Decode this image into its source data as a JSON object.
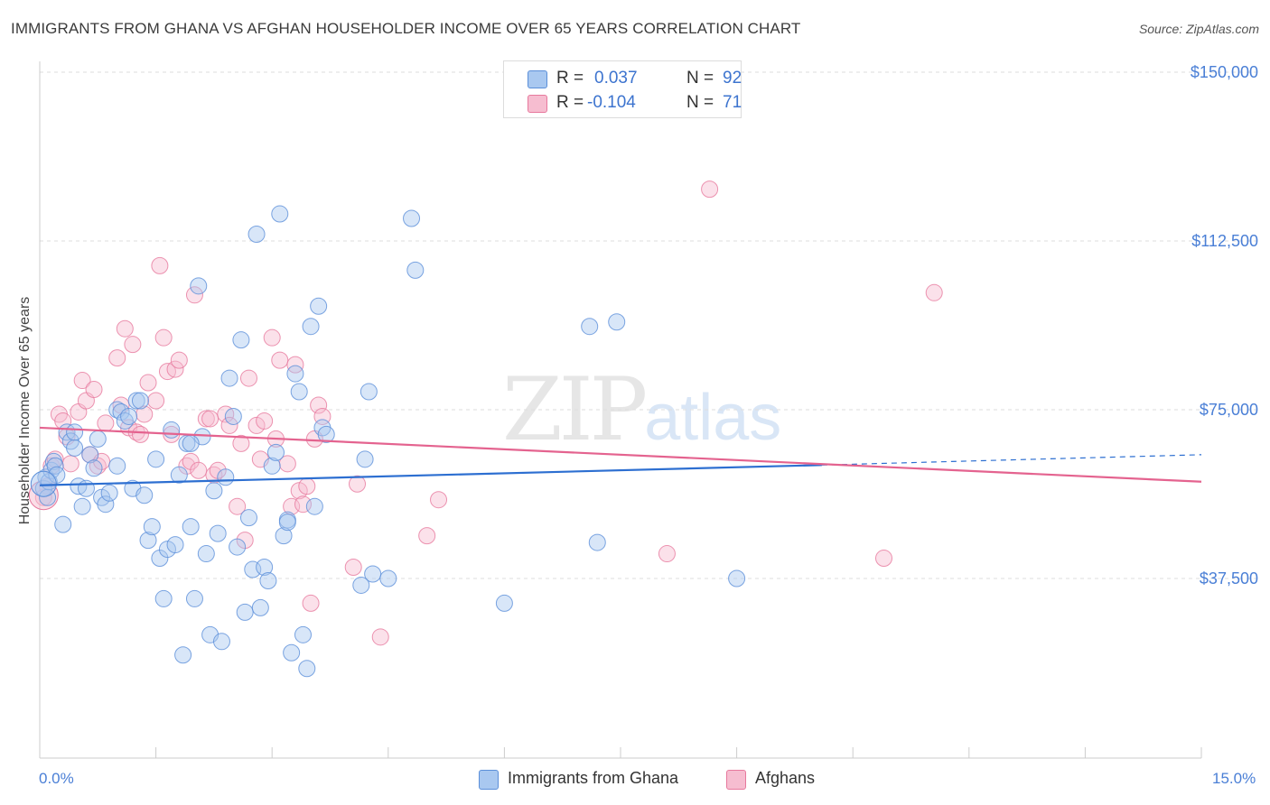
{
  "title": "IMMIGRANTS FROM GHANA VS AFGHAN HOUSEHOLDER INCOME OVER 65 YEARS CORRELATION CHART",
  "source": "Source: ZipAtlas.com",
  "watermark": {
    "zip": "ZIP",
    "atlas": "atlas"
  },
  "legend": {
    "rows": [
      {
        "r_label": "R =",
        "r_value": "0.037",
        "n_label": "N =",
        "n_value": "92",
        "color": "#a9c8f0"
      },
      {
        "r_label": "R =",
        "r_value": "-0.104",
        "n_label": "N =",
        "n_value": "71",
        "color": "#f6bdd0"
      }
    ]
  },
  "bottom_legend": [
    {
      "label": "Immigrants from Ghana",
      "color": "#a9c8f0"
    },
    {
      "label": "Afghans",
      "color": "#f6bdd0"
    }
  ],
  "colors": {
    "blue_fill": "#a9c8f0",
    "blue_stroke": "#5b8fd9",
    "blue_line": "#2d6fd1",
    "pink_fill": "#f6bdd0",
    "pink_stroke": "#e7799d",
    "pink_line": "#e4638f",
    "grid": "#dedede",
    "axis": "#cccccc",
    "tick_text": "#4a7fd6"
  },
  "chart_data": {
    "type": "scatter",
    "title": "IMMIGRANTS FROM GHANA VS AFGHAN HOUSEHOLDER INCOME OVER 65 YEARS CORRELATION CHART",
    "xlabel": "",
    "ylabel": "Householder Income Over 65 years",
    "xlim": [
      0,
      15
    ],
    "ylim": [
      0,
      154000
    ],
    "x_ticks": [
      "0.0%",
      "15.0%"
    ],
    "y_ticks": [
      {
        "value": 37500,
        "label": "$37,500"
      },
      {
        "value": 75000,
        "label": "$75,000"
      },
      {
        "value": 112500,
        "label": "$112,500"
      },
      {
        "value": 150000,
        "label": "$150,000"
      }
    ],
    "grid": true,
    "legend_position": "top-center",
    "series": [
      {
        "name": "Immigrants from Ghana",
        "r": 0.037,
        "n": 92,
        "trend": {
          "x0": 0,
          "y0": 58200,
          "x1": 10.1,
          "y1": 62700,
          "dash_x1": 15.0,
          "dash_y1": 65000
        },
        "points": [
          [
            0.05,
            57500
          ],
          [
            0.08,
            60000
          ],
          [
            0.1,
            55500
          ],
          [
            0.12,
            59000
          ],
          [
            0.15,
            61500
          ],
          [
            0.18,
            63500
          ],
          [
            0.2,
            62500
          ],
          [
            0.22,
            60500
          ],
          [
            0.3,
            49500
          ],
          [
            0.35,
            70000
          ],
          [
            0.4,
            68000
          ],
          [
            0.45,
            66500
          ],
          [
            0.5,
            58000
          ],
          [
            0.55,
            53500
          ],
          [
            0.6,
            57500
          ],
          [
            0.65,
            65000
          ],
          [
            0.7,
            62000
          ],
          [
            0.75,
            68500
          ],
          [
            0.8,
            55500
          ],
          [
            0.85,
            54000
          ],
          [
            0.9,
            56500
          ],
          [
            1.0,
            75000
          ],
          [
            1.05,
            74500
          ],
          [
            1.1,
            72500
          ],
          [
            1.15,
            73500
          ],
          [
            1.2,
            57500
          ],
          [
            1.25,
            77000
          ],
          [
            1.3,
            77000
          ],
          [
            1.35,
            56000
          ],
          [
            1.4,
            46000
          ],
          [
            1.45,
            49000
          ],
          [
            1.5,
            64000
          ],
          [
            1.55,
            42000
          ],
          [
            1.6,
            33000
          ],
          [
            1.65,
            44000
          ],
          [
            1.7,
            70500
          ],
          [
            1.75,
            45000
          ],
          [
            1.8,
            60500
          ],
          [
            1.85,
            20500
          ],
          [
            1.9,
            67500
          ],
          [
            1.95,
            49000
          ],
          [
            2.0,
            33000
          ],
          [
            2.05,
            102500
          ],
          [
            2.1,
            69000
          ],
          [
            2.15,
            43000
          ],
          [
            2.2,
            25000
          ],
          [
            2.25,
            57000
          ],
          [
            2.3,
            47500
          ],
          [
            2.35,
            23500
          ],
          [
            2.4,
            60000
          ],
          [
            2.45,
            82000
          ],
          [
            2.5,
            73500
          ],
          [
            2.55,
            44500
          ],
          [
            2.6,
            90500
          ],
          [
            2.65,
            30000
          ],
          [
            2.7,
            51000
          ],
          [
            2.75,
            39500
          ],
          [
            2.8,
            114000
          ],
          [
            2.85,
            31000
          ],
          [
            2.9,
            40000
          ],
          [
            2.95,
            37000
          ],
          [
            3.0,
            62500
          ],
          [
            3.05,
            65500
          ],
          [
            3.1,
            118500
          ],
          [
            3.15,
            47000
          ],
          [
            3.2,
            50500
          ],
          [
            3.25,
            21000
          ],
          [
            3.3,
            83000
          ],
          [
            3.35,
            79000
          ],
          [
            3.4,
            25000
          ],
          [
            3.45,
            17500
          ],
          [
            3.5,
            93500
          ],
          [
            3.55,
            53500
          ],
          [
            3.6,
            98000
          ],
          [
            3.65,
            71000
          ],
          [
            3.7,
            69500
          ],
          [
            4.15,
            36000
          ],
          [
            4.2,
            64000
          ],
          [
            4.25,
            79000
          ],
          [
            4.3,
            38500
          ],
          [
            4.5,
            37500
          ],
          [
            4.8,
            117500
          ],
          [
            4.85,
            106000
          ],
          [
            6.0,
            32000
          ],
          [
            7.1,
            93500
          ],
          [
            7.2,
            45500
          ],
          [
            7.45,
            94500
          ],
          [
            9.0,
            37500
          ],
          [
            3.2,
            50000
          ],
          [
            1.95,
            67500
          ],
          [
            1.0,
            62500
          ],
          [
            0.45,
            70000
          ]
        ]
      },
      {
        "name": "Afghans",
        "r": -0.104,
        "n": 71,
        "trend": {
          "x0": 0,
          "y0": 71000,
          "x1": 15.0,
          "y1": 59000
        },
        "points": [
          [
            0.05,
            55500
          ],
          [
            0.1,
            58000
          ],
          [
            0.15,
            62500
          ],
          [
            0.2,
            64000
          ],
          [
            0.25,
            74000
          ],
          [
            0.3,
            72500
          ],
          [
            0.35,
            69000
          ],
          [
            0.4,
            63000
          ],
          [
            0.5,
            74500
          ],
          [
            0.55,
            81500
          ],
          [
            0.6,
            77000
          ],
          [
            0.65,
            65000
          ],
          [
            0.7,
            79500
          ],
          [
            0.75,
            62500
          ],
          [
            0.8,
            63500
          ],
          [
            0.85,
            72000
          ],
          [
            1.0,
            86500
          ],
          [
            1.05,
            76000
          ],
          [
            1.1,
            93000
          ],
          [
            1.15,
            71000
          ],
          [
            1.2,
            89500
          ],
          [
            1.25,
            70000
          ],
          [
            1.3,
            69500
          ],
          [
            1.35,
            74000
          ],
          [
            1.4,
            81000
          ],
          [
            1.5,
            77000
          ],
          [
            1.55,
            107000
          ],
          [
            1.6,
            91000
          ],
          [
            1.65,
            83500
          ],
          [
            1.7,
            69500
          ],
          [
            1.75,
            84000
          ],
          [
            1.8,
            86000
          ],
          [
            1.9,
            62500
          ],
          [
            1.95,
            63500
          ],
          [
            2.0,
            100500
          ],
          [
            2.05,
            61500
          ],
          [
            2.15,
            73000
          ],
          [
            2.2,
            73000
          ],
          [
            2.25,
            60500
          ],
          [
            2.3,
            61500
          ],
          [
            2.4,
            74000
          ],
          [
            2.45,
            71500
          ],
          [
            2.55,
            53500
          ],
          [
            2.6,
            67500
          ],
          [
            2.65,
            46000
          ],
          [
            2.7,
            82000
          ],
          [
            2.8,
            71500
          ],
          [
            2.85,
            64000
          ],
          [
            2.9,
            72500
          ],
          [
            3.0,
            91000
          ],
          [
            3.05,
            68500
          ],
          [
            3.1,
            86000
          ],
          [
            3.2,
            63000
          ],
          [
            3.25,
            53500
          ],
          [
            3.3,
            85000
          ],
          [
            3.35,
            57000
          ],
          [
            3.4,
            54000
          ],
          [
            3.45,
            58000
          ],
          [
            3.5,
            32000
          ],
          [
            3.55,
            68500
          ],
          [
            3.6,
            76000
          ],
          [
            3.65,
            73500
          ],
          [
            4.05,
            40000
          ],
          [
            4.1,
            58500
          ],
          [
            4.4,
            24500
          ],
          [
            5.0,
            47000
          ],
          [
            5.15,
            55000
          ],
          [
            8.1,
            43000
          ],
          [
            8.65,
            124000
          ],
          [
            10.9,
            42000
          ],
          [
            11.55,
            101000
          ]
        ]
      }
    ]
  }
}
